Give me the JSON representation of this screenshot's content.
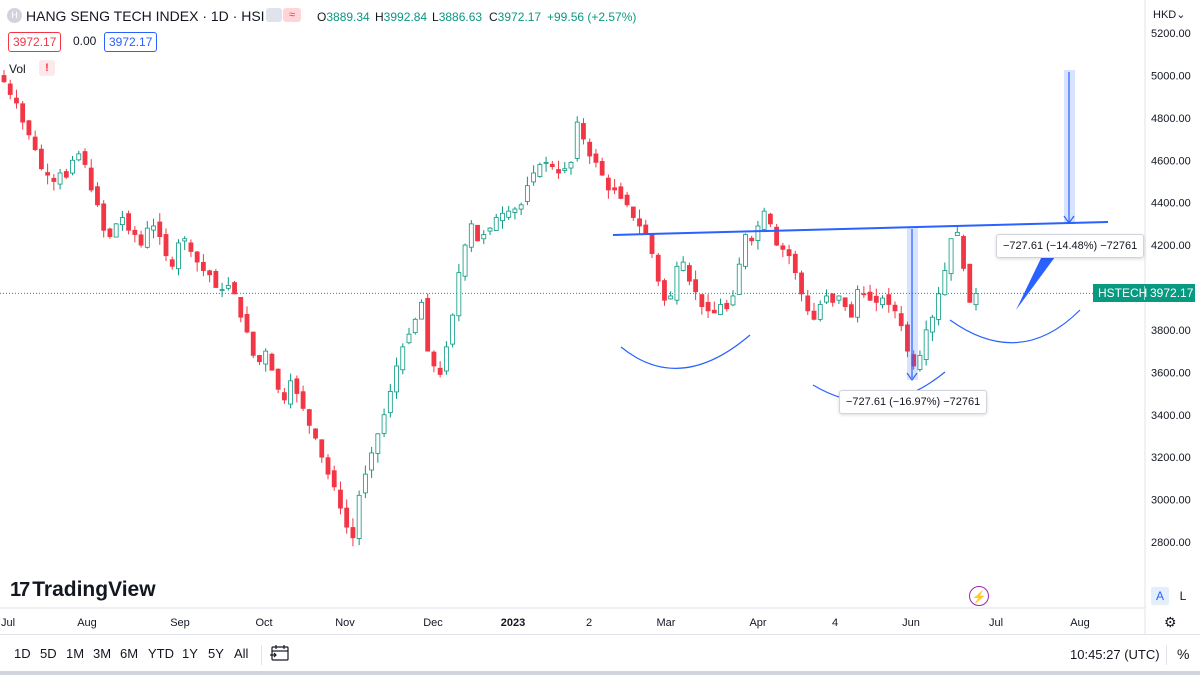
{
  "header": {
    "logo_letter": "H",
    "title": "HANG SENG TECH INDEX · 1D · HSI",
    "wave_icon": "≈",
    "ohlc": {
      "o_key": "O",
      "o_val": "3889.34",
      "h_key": "H",
      "h_val": "3992.84",
      "l_key": "L",
      "l_val": "3886.63",
      "c_key": "C",
      "c_val": "3972.17",
      "change": "+99.56 (+2.57%)"
    },
    "bid": "3972.17",
    "spread": "0.00",
    "ask": "3972.17"
  },
  "volume_label": "Vol",
  "volume_warning": "!",
  "axis_currency": "HKD",
  "price_tag": {
    "symbol": "HSTECH",
    "value": "3972.17"
  },
  "measure_1": "−727.61 (−14.48%) −72761",
  "measure_2": "−727.61 (−16.97%) −72761",
  "brand": "TradingView",
  "auto_a": "A",
  "auto_l": "L",
  "timeframes": [
    "1D",
    "5D",
    "1M",
    "3M",
    "6M",
    "YTD",
    "1Y",
    "5Y",
    "All"
  ],
  "clock": "10:45:27 (UTC)",
  "percent_toggle": "%",
  "colors": {
    "up": "#089981",
    "down": "#f23645",
    "drawing": "#2962ff",
    "price_line": "#089981"
  },
  "chart_data": {
    "type": "candlestick",
    "title": "HANG SENG TECH INDEX · 1D · HSI",
    "y_ticks": [
      "5200.00",
      "5000.00",
      "4800.00",
      "4600.00",
      "4400.00",
      "4200.00",
      "4000.00",
      "3800.00",
      "3600.00",
      "3400.00",
      "3200.00",
      "3000.00",
      "2800.00"
    ],
    "ylim": [
      2520,
      5280
    ],
    "x_ticks": [
      "Jul",
      "Aug",
      "Sep",
      "Oct",
      "Nov",
      "Dec",
      "2023",
      "2",
      "Mar",
      "Apr",
      "4",
      "Jun",
      "Jul",
      "Aug"
    ],
    "last_price": 3972.17,
    "closes": [
      4970,
      4910,
      4870,
      4780,
      4720,
      4650,
      4560,
      4530,
      4500,
      4540,
      4520,
      4600,
      4630,
      4580,
      4460,
      4390,
      4270,
      4240,
      4300,
      4330,
      4270,
      4250,
      4200,
      4280,
      4290,
      4240,
      4150,
      4100,
      4210,
      4230,
      4170,
      4120,
      4080,
      4060,
      4000,
      3990,
      4010,
      3970,
      3860,
      3790,
      3680,
      3650,
      3700,
      3610,
      3520,
      3470,
      3560,
      3500,
      3430,
      3350,
      3290,
      3200,
      3120,
      3060,
      2960,
      2870,
      2820,
      3020,
      3120,
      3220,
      3310,
      3400,
      3510,
      3630,
      3720,
      3780,
      3850,
      3930,
      3700,
      3630,
      3590,
      3720,
      3870,
      4070,
      4200,
      4300,
      4220,
      4250,
      4280,
      4330,
      4350,
      4360,
      4370,
      4390,
      4480,
      4540,
      4580,
      4590,
      4570,
      4540,
      4560,
      4590,
      4780,
      4700,
      4620,
      4590,
      4530,
      4460,
      4460,
      4420,
      4390,
      4330,
      4290,
      4250,
      4160,
      4030,
      3940,
      3960,
      4100,
      4120,
      4030,
      3980,
      3910,
      3890,
      3880,
      3920,
      3900,
      3960,
      4110,
      4250,
      4220,
      4290,
      4360,
      4300,
      4200,
      4180,
      4150,
      4070,
      3970,
      3890,
      3850,
      3920,
      3960,
      3930,
      3960,
      3910,
      3860,
      3990,
      3970,
      3940,
      3930,
      3950,
      3920,
      3890,
      3820,
      3700,
      3630,
      3680,
      3800,
      3860,
      3970,
      4080,
      4230,
      4260,
      4090,
      3930,
      3972
    ]
  }
}
